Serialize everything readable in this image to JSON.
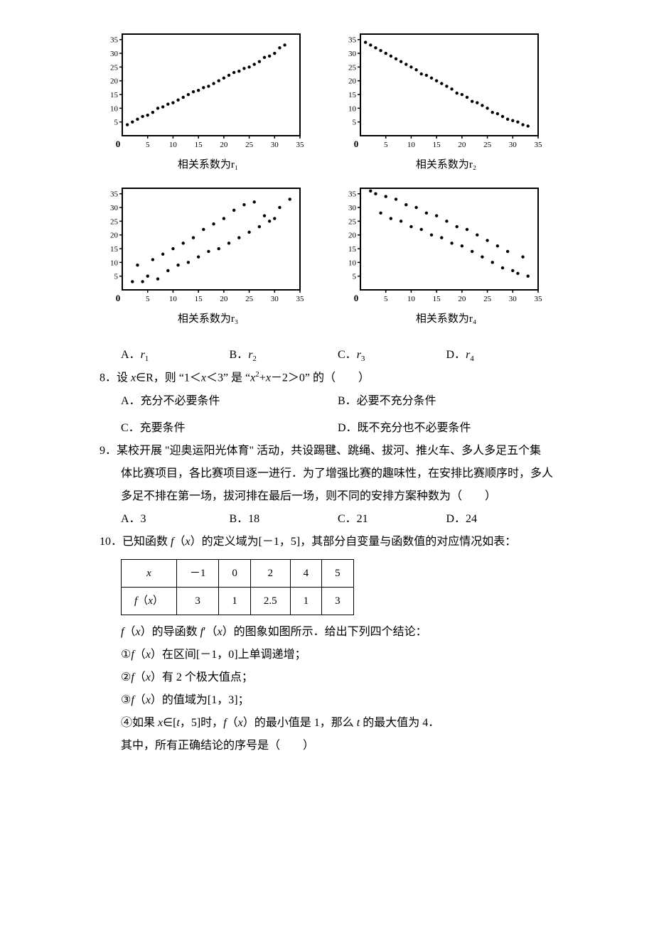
{
  "charts": {
    "grid": {
      "cols": 2,
      "rows": 2
    },
    "axis": {
      "xlim": [
        0,
        35
      ],
      "ylim": [
        0,
        37
      ],
      "xticks": [
        5,
        10,
        15,
        20,
        25,
        30,
        35
      ],
      "yticks": [
        5,
        10,
        15,
        20,
        25,
        30,
        35
      ],
      "tick_fontsize": 11,
      "stroke": "#000000",
      "stroke_width": 2,
      "point_r": 2.2,
      "point_color": "#000000",
      "bg": "#ffffff"
    },
    "panels": [
      {
        "caption": "相关系数为r₁",
        "points": [
          [
            1,
            4
          ],
          [
            2,
            5
          ],
          [
            3,
            6
          ],
          [
            4,
            7
          ],
          [
            5,
            7.5
          ],
          [
            6,
            8.5
          ],
          [
            7,
            10
          ],
          [
            8,
            10.5
          ],
          [
            9,
            11.5
          ],
          [
            10,
            12
          ],
          [
            11,
            13
          ],
          [
            12,
            14
          ],
          [
            13,
            15
          ],
          [
            14,
            16
          ],
          [
            15,
            16.5
          ],
          [
            16,
            17.5
          ],
          [
            17,
            18
          ],
          [
            18,
            19
          ],
          [
            19,
            20
          ],
          [
            20,
            21
          ],
          [
            21,
            22
          ],
          [
            22,
            23
          ],
          [
            23,
            23.5
          ],
          [
            24,
            24.5
          ],
          [
            25,
            25
          ],
          [
            26,
            26
          ],
          [
            27,
            27
          ],
          [
            28,
            28.5
          ],
          [
            29,
            29
          ],
          [
            30,
            30
          ],
          [
            31,
            32
          ],
          [
            32,
            33
          ]
        ]
      },
      {
        "caption": "相关系数为r₂",
        "points": [
          [
            1,
            34
          ],
          [
            2,
            33
          ],
          [
            3,
            32
          ],
          [
            4,
            31
          ],
          [
            5,
            30
          ],
          [
            6,
            29
          ],
          [
            7,
            28
          ],
          [
            8,
            27
          ],
          [
            9,
            26
          ],
          [
            10,
            25
          ],
          [
            11,
            24
          ],
          [
            12,
            22.5
          ],
          [
            13,
            22
          ],
          [
            14,
            21
          ],
          [
            15,
            20
          ],
          [
            16,
            19
          ],
          [
            17,
            18
          ],
          [
            18,
            17
          ],
          [
            19,
            15.5
          ],
          [
            20,
            15
          ],
          [
            21,
            14
          ],
          [
            22,
            12.5
          ],
          [
            23,
            12
          ],
          [
            24,
            11
          ],
          [
            25,
            10
          ],
          [
            26,
            8.5
          ],
          [
            27,
            8
          ],
          [
            28,
            7
          ],
          [
            29,
            6
          ],
          [
            30,
            5.5
          ],
          [
            31,
            5
          ],
          [
            32,
            4
          ],
          [
            33,
            3.5
          ]
        ]
      },
      {
        "caption": "相关系数为r₃",
        "points": [
          [
            2,
            3
          ],
          [
            3,
            9
          ],
          [
            4,
            3
          ],
          [
            5,
            5
          ],
          [
            6,
            11
          ],
          [
            7,
            4
          ],
          [
            8,
            13
          ],
          [
            9,
            7
          ],
          [
            10,
            15
          ],
          [
            11,
            9
          ],
          [
            12,
            17
          ],
          [
            13,
            10
          ],
          [
            14,
            19
          ],
          [
            15,
            12
          ],
          [
            16,
            22
          ],
          [
            17,
            14
          ],
          [
            18,
            24
          ],
          [
            19,
            15
          ],
          [
            20,
            26
          ],
          [
            21,
            17
          ],
          [
            22,
            29
          ],
          [
            23,
            19
          ],
          [
            24,
            31
          ],
          [
            25,
            21
          ],
          [
            26,
            32
          ],
          [
            27,
            23
          ],
          [
            28,
            27
          ],
          [
            29,
            25
          ],
          [
            30,
            26
          ],
          [
            31,
            30
          ],
          [
            33,
            33
          ]
        ]
      },
      {
        "caption": "相关系数为r₄",
        "points": [
          [
            2,
            36
          ],
          [
            3,
            35
          ],
          [
            4,
            28
          ],
          [
            5,
            34
          ],
          [
            6,
            26
          ],
          [
            7,
            33
          ],
          [
            8,
            25
          ],
          [
            9,
            31
          ],
          [
            10,
            23
          ],
          [
            11,
            30
          ],
          [
            12,
            22
          ],
          [
            13,
            28
          ],
          [
            14,
            20
          ],
          [
            15,
            27
          ],
          [
            16,
            19
          ],
          [
            17,
            25
          ],
          [
            18,
            17
          ],
          [
            19,
            23
          ],
          [
            20,
            16
          ],
          [
            21,
            22
          ],
          [
            22,
            14
          ],
          [
            23,
            20
          ],
          [
            24,
            12
          ],
          [
            25,
            18
          ],
          [
            26,
            10
          ],
          [
            27,
            16
          ],
          [
            28,
            8
          ],
          [
            29,
            14
          ],
          [
            30,
            7
          ],
          [
            31,
            6
          ],
          [
            32,
            12
          ],
          [
            33,
            5
          ]
        ]
      }
    ]
  },
  "q7_options": {
    "A": "A．",
    "A_sym": "r",
    "A_sub": "1",
    "B": "B．",
    "B_sym": "r",
    "B_sub": "2",
    "C": "C．",
    "C_sym": "r",
    "C_sub": "3",
    "D": "D．",
    "D_sym": "r",
    "D_sub": "4"
  },
  "q8": {
    "stem": "8．设 x∈R，则 \"1＜x＜3\" 是 \"x²+x - 2＞0\" 的（　　）",
    "A": "A．充分不必要条件",
    "B": "B．必要不充分条件",
    "C": "C．充要条件",
    "D": "D．既不充分也不必要条件"
  },
  "q9": {
    "stem1": "9．某校开展 \"迎奥运阳光体育\" 活动，共设踢毽、跳绳、拔河、推火车、多人多足五个集",
    "stem2": "体比赛项目，各比赛项目逐一进行．为了增强比赛的趣味性，在安排比赛顺序时，多人",
    "stem3": "多足不排在第一场，拔河排在最后一场，则不同的安排方案种数为（　　）",
    "A": "A．3",
    "B": "B．18",
    "C": "C．21",
    "D": "D．24"
  },
  "q10": {
    "stem": "10．已知函数 f（x）的定义域为[－1，5]，其部分自变量与函数值的对应情况如表：",
    "table": {
      "header": [
        "x",
        "－1",
        "0",
        "2",
        "4",
        "5"
      ],
      "row": [
        "f（x）",
        "3",
        "1",
        "2.5",
        "1",
        "3"
      ]
    },
    "line1": "f（x）的导函数 f′（x）的图象如图所示．给出下列四个结论：",
    "c1": "①f（x）在区间[－1，0]上单调递增；",
    "c2": "②f（x）有 2 个极大值点；",
    "c3": "③f（x）的值域为[1，3]；",
    "c4": "④如果 x∈[t，5]时，f（x）的最小值是 1，那么 t 的最大值为 4．",
    "tail": "其中，所有正确结论的序号是（　　）"
  }
}
